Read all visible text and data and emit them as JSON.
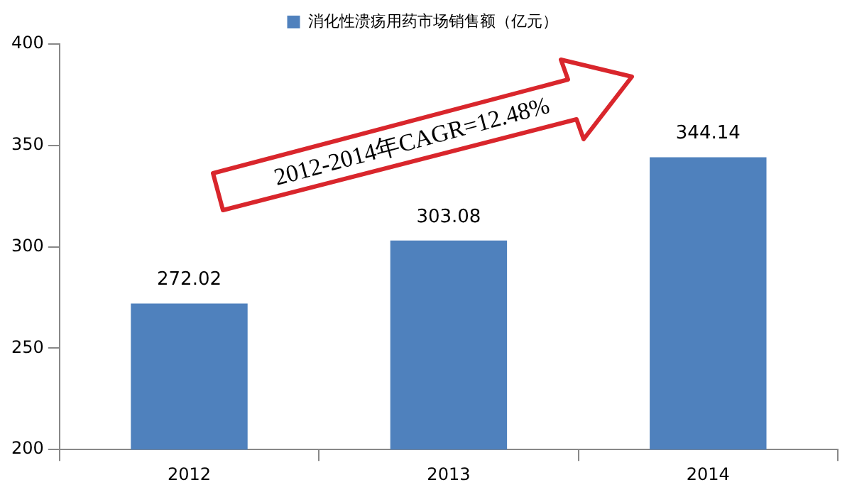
{
  "chart_data": {
    "type": "bar",
    "categories": [
      "2012",
      "2013",
      "2014"
    ],
    "series": [
      {
        "name": "消化性溃疡用药市场销售额（亿元）",
        "color": "#4f81bd",
        "values": [
          272.02,
          303.08,
          344.14
        ]
      }
    ],
    "ylim": [
      200,
      400
    ],
    "yticks": [
      200,
      250,
      300,
      350,
      400
    ],
    "grid": false,
    "legend": "top",
    "data_labels": true,
    "annotations": [
      "2012-2014年CAGR=12.48%"
    ]
  }
}
